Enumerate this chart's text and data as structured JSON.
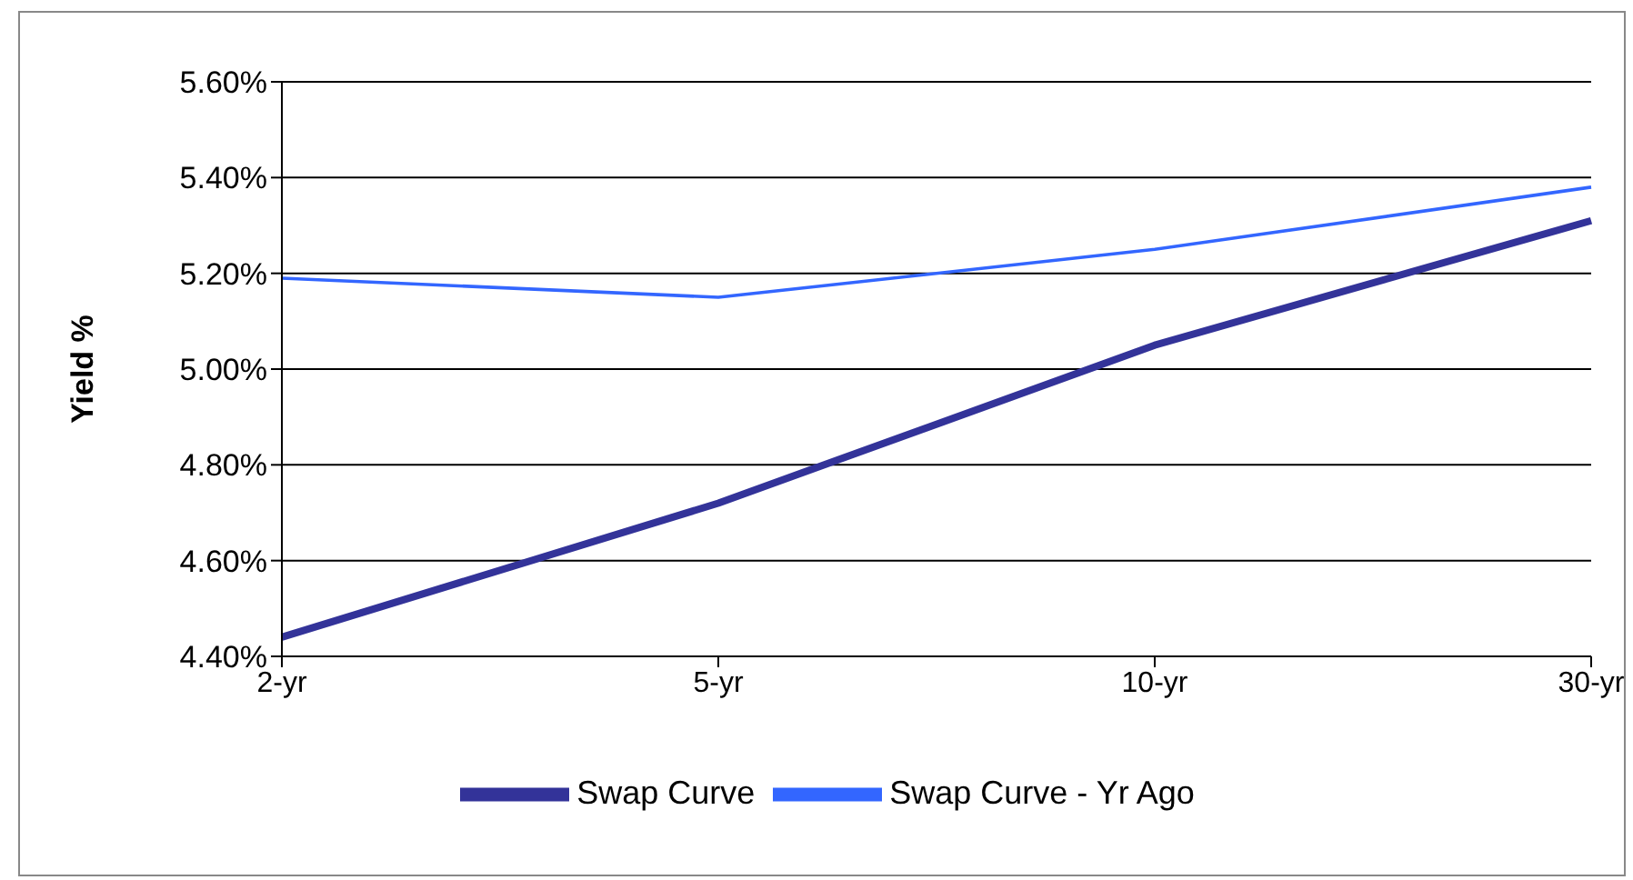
{
  "chart_data": {
    "type": "line",
    "ylabel": "Yield %",
    "categories": [
      "2-yr",
      "5-yr",
      "10-yr",
      "30-yr"
    ],
    "series": [
      {
        "name": "Swap Curve",
        "color": "#333399",
        "values": [
          4.44,
          4.72,
          5.05,
          5.31
        ]
      },
      {
        "name": "Swap Curve - Yr Ago",
        "color": "#3366ff",
        "values": [
          5.19,
          5.15,
          5.25,
          5.38
        ]
      }
    ],
    "ylim": [
      4.4,
      5.6
    ],
    "yticks": [
      {
        "value": 4.4,
        "label": "4.40%"
      },
      {
        "value": 4.6,
        "label": "4.60%"
      },
      {
        "value": 4.8,
        "label": "4.80%"
      },
      {
        "value": 5.0,
        "label": "5.00%"
      },
      {
        "value": 5.2,
        "label": "5.20%"
      },
      {
        "value": 5.4,
        "label": "5.40%"
      },
      {
        "value": 5.6,
        "label": "5.60%"
      }
    ],
    "grid": "y",
    "legend": "bottom",
    "marker": "none",
    "line_style": "solid"
  }
}
